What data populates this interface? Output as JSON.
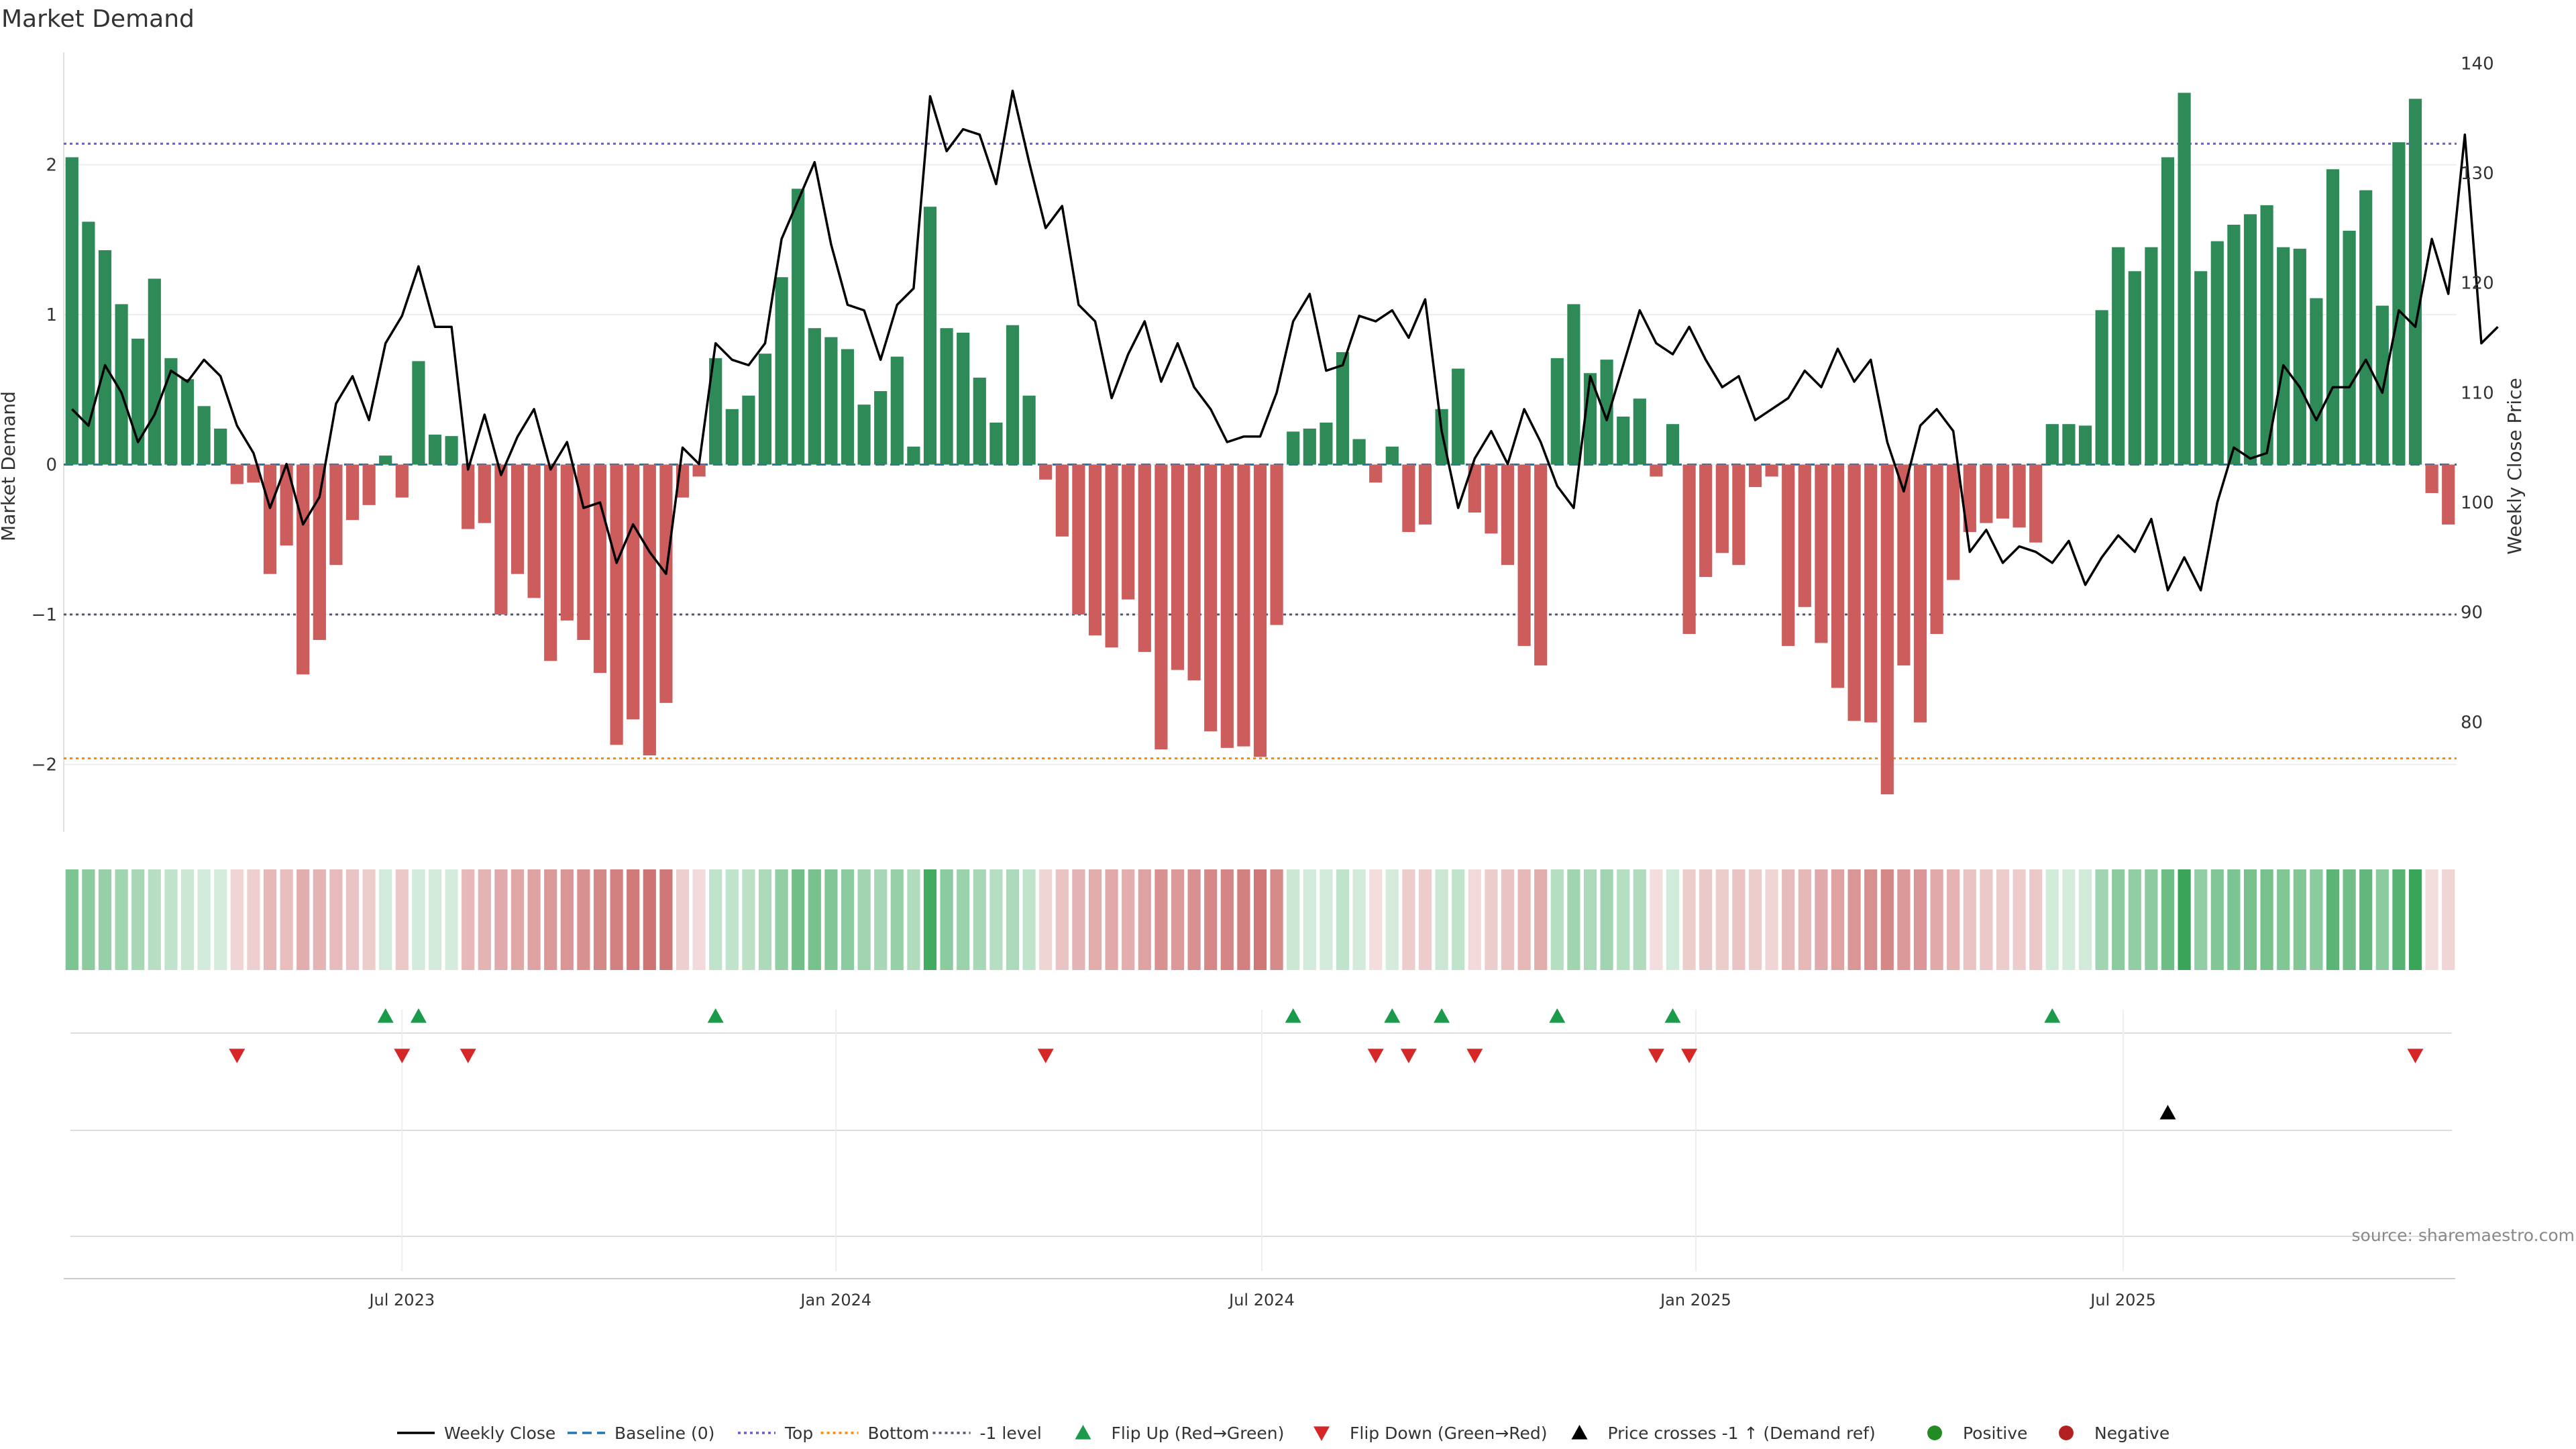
{
  "colors": {
    "positive_bar": "#2e8b57",
    "negative_bar": "#cd5c5c",
    "price_line": "#000000",
    "baseline": "#1f77b4",
    "top_line": "#6a5acd",
    "bottom_line": "#ff8c00",
    "minus1_line": "#555577",
    "flip_up": "#1a9a4a",
    "flip_down": "#d62728",
    "price_cross": "#000000",
    "positive_dot": "#228b22",
    "negative_dot": "#b22222"
  },
  "chart_data": {
    "type": "bar",
    "title": "Market Demand",
    "ylabel": "Market Demand",
    "y2label": "Weekly Close Price",
    "ylim": [
      -2.45,
      2.75
    ],
    "y2lim": [
      70,
      141
    ],
    "yticks": [
      -2,
      -1,
      0,
      1,
      2
    ],
    "y2ticks": [
      80,
      90,
      100,
      110,
      120,
      130,
      140
    ],
    "xticks": [
      {
        "label": "Jul 2023",
        "week": 20.5
      },
      {
        "label": "Jan 2024",
        "week": 46.8
      },
      {
        "label": "Jul 2024",
        "week": 72.6
      },
      {
        "label": "Jan 2025",
        "week": 98.9
      },
      {
        "label": "Jul 2025",
        "week": 124.8
      }
    ],
    "reference_lines": {
      "top": 2.14,
      "bottom": -1.96,
      "minus_one": -1.0,
      "baseline": 0
    },
    "demand": [
      2.05,
      1.62,
      1.43,
      1.07,
      0.84,
      1.24,
      0.71,
      0.57,
      0.39,
      0.24,
      -0.13,
      -0.12,
      -0.73,
      -0.54,
      -1.4,
      -1.17,
      -0.67,
      -0.37,
      -0.27,
      0.06,
      -0.22,
      0.69,
      0.2,
      0.19,
      -0.43,
      -0.39,
      -1.0,
      -0.73,
      -0.89,
      -1.31,
      -1.04,
      -1.17,
      -1.39,
      -1.87,
      -1.7,
      -1.94,
      -1.59,
      -0.22,
      -0.08,
      0.71,
      0.37,
      0.46,
      0.74,
      1.25,
      1.84,
      0.91,
      0.85,
      0.77,
      0.4,
      0.49,
      0.72,
      0.12,
      1.72,
      0.91,
      0.88,
      0.58,
      0.28,
      0.93,
      0.46,
      -0.1,
      -0.48,
      -1.0,
      -1.14,
      -1.22,
      -0.9,
      -1.25,
      -1.9,
      -1.37,
      -1.44,
      -1.78,
      -1.89,
      -1.88,
      -1.95,
      -1.07,
      0.22,
      0.24,
      0.28,
      0.75,
      0.17,
      -0.12,
      0.12,
      -0.45,
      -0.4,
      0.37,
      0.64,
      -0.32,
      -0.46,
      -0.67,
      -1.21,
      -1.34,
      0.71,
      1.07,
      0.61,
      0.7,
      0.32,
      0.44,
      -0.08,
      0.27,
      -1.13,
      -0.75,
      -0.59,
      -0.67,
      -0.15,
      -0.08,
      -1.21,
      -0.95,
      -1.19,
      -1.49,
      -1.71,
      -1.72,
      -2.2,
      -1.34,
      -1.72,
      -1.13,
      -0.77,
      -0.45,
      -0.39,
      -0.36,
      -0.42,
      -0.52,
      0.27,
      0.27,
      0.26,
      1.03,
      1.45,
      1.29,
      1.45,
      2.05,
      2.48,
      1.29,
      1.49,
      1.6,
      1.67,
      1.73,
      1.45,
      1.44,
      1.11,
      1.97,
      1.56,
      1.83,
      1.06,
      2.15,
      2.44,
      -0.19,
      -0.4
    ],
    "weekly_close": [
      108.5,
      107.0,
      112.5,
      110.0,
      105.5,
      108.0,
      112.0,
      111.0,
      113.0,
      111.5,
      107.0,
      104.5,
      99.5,
      103.5,
      98.0,
      100.5,
      109.0,
      111.5,
      107.5,
      114.5,
      117.0,
      121.5,
      116.0,
      116.0,
      103.0,
      108.0,
      102.5,
      106.0,
      108.5,
      103.0,
      105.5,
      99.5,
      100.0,
      94.5,
      98.0,
      95.5,
      93.5,
      105.0,
      103.5,
      114.5,
      113.0,
      112.5,
      114.5,
      124.0,
      127.5,
      131.0,
      123.5,
      118.0,
      117.5,
      113.0,
      118.0,
      119.5,
      137.0,
      132.0,
      134.0,
      133.5,
      129.0,
      137.5,
      131.0,
      125.0,
      127.0,
      118.0,
      116.5,
      109.5,
      113.5,
      116.5,
      111.0,
      114.5,
      110.5,
      108.5,
      105.5,
      106.0,
      106.0,
      110.0,
      116.5,
      119.0,
      112.0,
      112.5,
      117.0,
      116.5,
      117.5,
      115.0,
      118.5,
      106.5,
      99.5,
      104.0,
      106.5,
      103.5,
      108.5,
      105.5,
      101.5,
      99.5,
      111.5,
      107.5,
      112.5,
      117.5,
      114.5,
      113.5,
      116.0,
      113.0,
      110.5,
      111.5,
      107.5,
      108.5,
      109.5,
      112.0,
      110.5,
      114.0,
      111.0,
      113.0,
      105.5,
      101.0,
      107.0,
      108.5,
      106.5,
      95.5,
      97.5,
      94.5,
      96.0,
      95.5,
      94.5,
      96.5,
      92.5,
      95.0,
      97.0,
      95.5,
      98.5,
      92.0,
      95.0,
      92.0,
      100.0,
      105.0,
      104.0,
      104.5,
      112.5,
      110.5,
      107.5,
      110.5,
      110.5,
      113.0,
      110.0,
      117.5,
      116.0,
      124.0,
      119.0,
      133.5,
      114.5,
      116.0
    ]
  },
  "strip_levels": [
    0.62,
    0.55,
    0.5,
    0.45,
    0.42,
    0.35,
    0.3,
    0.25,
    0.22,
    0.2,
    0.25,
    0.28,
    0.42,
    0.38,
    0.48,
    0.45,
    0.4,
    0.35,
    0.3,
    0.22,
    0.32,
    0.22,
    0.22,
    0.2,
    0.42,
    0.45,
    0.5,
    0.52,
    0.55,
    0.6,
    0.62,
    0.65,
    0.7,
    0.75,
    0.78,
    0.82,
    0.8,
    0.28,
    0.22,
    0.3,
    0.3,
    0.32,
    0.4,
    0.52,
    0.68,
    0.65,
    0.6,
    0.55,
    0.45,
    0.42,
    0.5,
    0.38,
    0.9,
    0.55,
    0.48,
    0.42,
    0.35,
    0.4,
    0.3,
    0.25,
    0.35,
    0.45,
    0.48,
    0.5,
    0.48,
    0.55,
    0.65,
    0.6,
    0.65,
    0.7,
    0.72,
    0.75,
    0.8,
    0.68,
    0.25,
    0.22,
    0.22,
    0.3,
    0.22,
    0.2,
    0.2,
    0.3,
    0.3,
    0.25,
    0.3,
    0.22,
    0.3,
    0.35,
    0.42,
    0.48,
    0.35,
    0.45,
    0.4,
    0.45,
    0.35,
    0.38,
    0.2,
    0.22,
    0.3,
    0.32,
    0.3,
    0.35,
    0.3,
    0.25,
    0.4,
    0.42,
    0.5,
    0.55,
    0.62,
    0.66,
    0.7,
    0.6,
    0.62,
    0.5,
    0.45,
    0.35,
    0.32,
    0.3,
    0.3,
    0.32,
    0.22,
    0.2,
    0.22,
    0.45,
    0.55,
    0.52,
    0.55,
    0.7,
    0.95,
    0.52,
    0.6,
    0.62,
    0.65,
    0.65,
    0.6,
    0.6,
    0.55,
    0.78,
    0.68,
    0.75,
    0.55,
    0.8,
    0.95,
    0.2,
    0.25
  ],
  "flip_up_weeks": [
    19,
    21,
    39,
    74,
    80,
    83,
    90,
    97,
    120
  ],
  "flip_down_weeks": [
    10,
    20,
    24,
    59,
    79,
    81,
    85,
    96,
    98,
    142
  ],
  "price_cross_weeks": [
    127
  ],
  "legend": {
    "items": [
      {
        "label": "Weekly Close",
        "kind": "line-solid"
      },
      {
        "label": "Baseline (0)",
        "kind": "line-dashed"
      },
      {
        "label": "Top",
        "kind": "line-dotted-purple"
      },
      {
        "label": "Bottom",
        "kind": "line-dotted-orange"
      },
      {
        "label": "-1 level",
        "kind": "line-dotted-gray"
      },
      {
        "label": "Flip Up (Red→Green)",
        "kind": "triangle-up-green"
      },
      {
        "label": "Flip Down (Green→Red)",
        "kind": "triangle-down-red"
      },
      {
        "label": "Price crosses -1 ↑ (Demand ref)",
        "kind": "triangle-up-black"
      },
      {
        "label": "Positive",
        "kind": "dot-green"
      },
      {
        "label": "Negative",
        "kind": "dot-red"
      }
    ]
  },
  "source_text": "source: sharemaestro.com"
}
